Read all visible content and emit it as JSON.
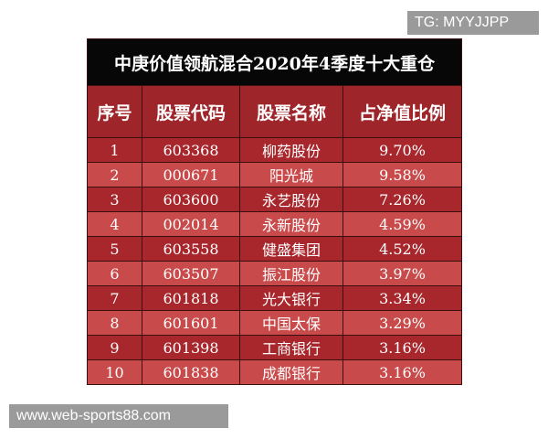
{
  "watermarks": {
    "top": "TG: MYYJJPP",
    "bottom": "www.web-sports88.com"
  },
  "table": {
    "title": "中庚价值领航混合2020年4季度十大重仓",
    "columns": [
      "序号",
      "股票代码",
      "股票名称",
      "占净值比例"
    ],
    "rows": [
      [
        "1",
        "603368",
        "柳药股份",
        "9.70%"
      ],
      [
        "2",
        "000671",
        "阳光城",
        "9.58%"
      ],
      [
        "3",
        "603600",
        "永艺股份",
        "7.26%"
      ],
      [
        "4",
        "002014",
        "永新股份",
        "4.59%"
      ],
      [
        "5",
        "603558",
        "健盛集团",
        "4.52%"
      ],
      [
        "6",
        "603507",
        "振江股份",
        "3.97%"
      ],
      [
        "7",
        "601818",
        "光大银行",
        "3.34%"
      ],
      [
        "8",
        "601601",
        "中国太保",
        "3.29%"
      ],
      [
        "9",
        "601398",
        "工商银行",
        "3.16%"
      ],
      [
        "10",
        "601838",
        "成都银行",
        "3.16%"
      ]
    ]
  }
}
